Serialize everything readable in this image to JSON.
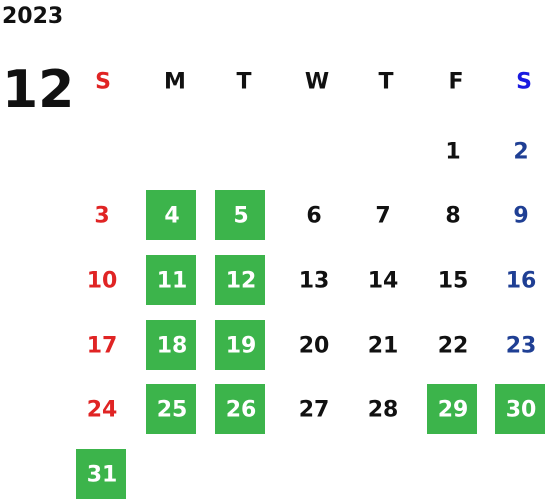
{
  "year": "2023",
  "month": "12",
  "weekdays": [
    "S",
    "M",
    "T",
    "W",
    "T",
    "F",
    "S"
  ],
  "weeks": [
    [
      null,
      null,
      null,
      null,
      null,
      1,
      2
    ],
    [
      3,
      4,
      5,
      6,
      7,
      8,
      9
    ],
    [
      10,
      11,
      12,
      13,
      14,
      15,
      16
    ],
    [
      17,
      18,
      19,
      20,
      21,
      22,
      23
    ],
    [
      24,
      25,
      26,
      27,
      28,
      29,
      30
    ],
    [
      31,
      null,
      null,
      null,
      null,
      null,
      null
    ]
  ],
  "highlighted_days": [
    4,
    5,
    11,
    12,
    18,
    19,
    25,
    26,
    29,
    30,
    31
  ]
}
